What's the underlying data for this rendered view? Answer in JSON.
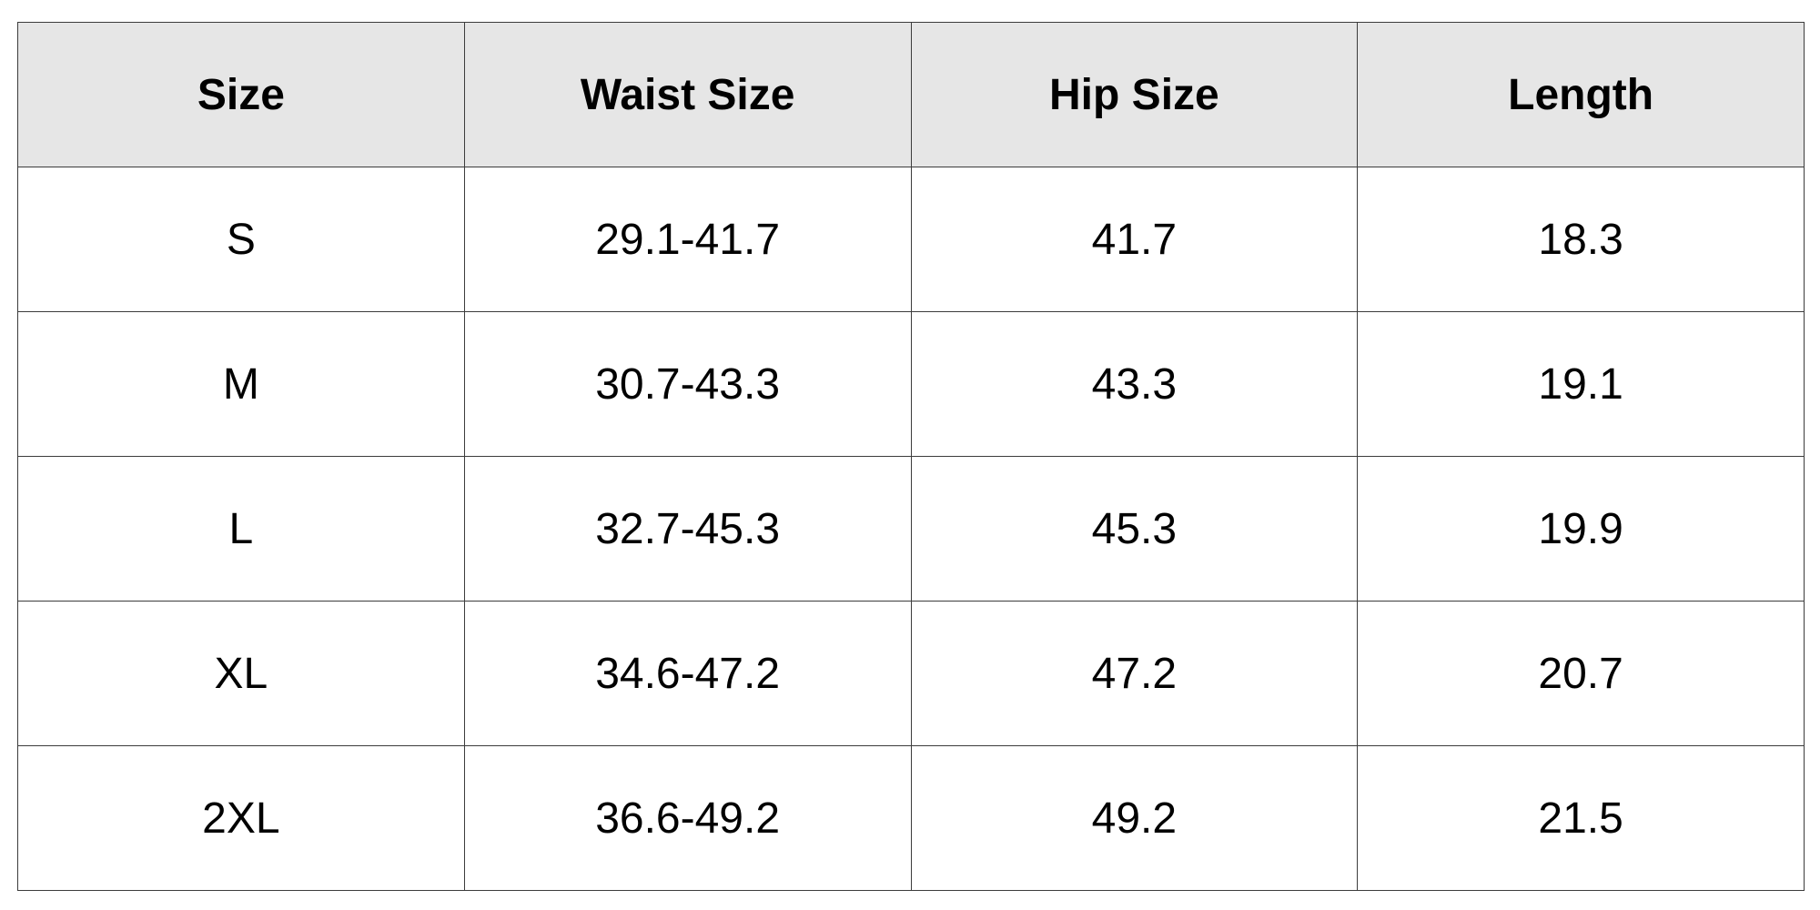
{
  "table": {
    "headers": [
      "Size",
      "Waist Size",
      "Hip Size",
      "Length"
    ],
    "rows": [
      [
        "S",
        "29.1-41.7",
        "41.7",
        "18.3"
      ],
      [
        "M",
        "30.7-43.3",
        "43.3",
        "19.1"
      ],
      [
        "L",
        "32.7-45.3",
        "45.3",
        "19.9"
      ],
      [
        "XL",
        "34.6-47.2",
        "47.2",
        "20.7"
      ],
      [
        "2XL",
        "36.6-49.2",
        "49.2",
        "21.5"
      ]
    ],
    "colors": {
      "header_background": "#e6e6e6",
      "body_background": "#ffffff",
      "border": "#3c3c3c",
      "text": "#000000"
    }
  }
}
